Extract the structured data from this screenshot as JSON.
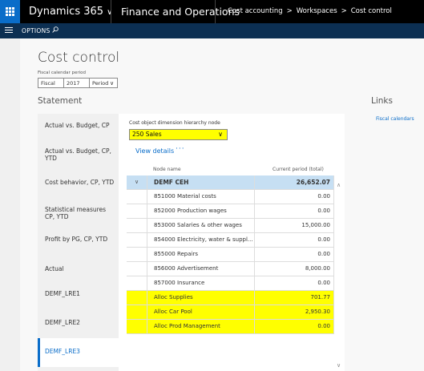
{
  "topbar": {
    "app_name": "Dynamics 365",
    "app_chevron": "∨",
    "module": "Finance and Operations",
    "breadcrumb": [
      "Cost accounting",
      "Workspaces",
      "Cost control"
    ],
    "breadcrumb_separator": ">"
  },
  "actionbar": {
    "options_label": "OPTIONS"
  },
  "page": {
    "title": "Cost control",
    "fiscal_calendar_period_label": "Fiscal calendar period",
    "fiscal": "Fiscal",
    "year": "2017",
    "period": "Period",
    "period_chevron": "∨",
    "statement_heading": "Statement",
    "links_heading": "Links"
  },
  "links": [
    {
      "label": "Fiscal calendars"
    }
  ],
  "statements": [
    {
      "label": "Actual vs. Budget, CP"
    },
    {
      "label": "Actual vs. Budget, CP, YTD"
    },
    {
      "label": "Cost behavior, CP, YTD"
    },
    {
      "label": "Statistical measures CP, YTD"
    },
    {
      "label": "Profit by PG, CP, YTD"
    },
    {
      "label": "Actual"
    },
    {
      "label": "DEMF_LRE1"
    },
    {
      "label": "DEMF_LRE2"
    },
    {
      "label": "DEMF_LRE3"
    }
  ],
  "active_statement": "DEMF_LRE3",
  "main": {
    "hierarchy_label": "Cost object dimension hierarchy node",
    "hierarchy_value": "250 Sales",
    "hierarchy_chevron": "∨",
    "view_details": "View details",
    "more": "···",
    "col_node": "Node name",
    "col_period": "Current period (total)"
  },
  "grid": {
    "header": {
      "expander": "∨",
      "name": "DEMF CEH",
      "value": "26,652.07"
    },
    "rows": [
      {
        "name": "851000 Material costs",
        "value": "0.00"
      },
      {
        "name": "852000 Production wages",
        "value": "0.00"
      },
      {
        "name": "853000 Salaries & other wages",
        "value": "15,000.00"
      },
      {
        "name": "854000 Electricity, water & suppl...",
        "value": "0.00"
      },
      {
        "name": "855000 Repairs",
        "value": "0.00"
      },
      {
        "name": "856000 Advertisement",
        "value": "8,000.00"
      },
      {
        "name": "857000 Insurance",
        "value": "0.00"
      },
      {
        "name": "Alloc Supplies",
        "value": "701.77"
      },
      {
        "name": "Alloc Car Pool",
        "value": "2,950.30"
      },
      {
        "name": "Alloc Prod Management",
        "value": "0.00"
      }
    ]
  },
  "scrollbar": {
    "up": "∧",
    "down": "∨"
  },
  "colors": {
    "brand_blue": "#0a6dc9",
    "header_bar": "#000000",
    "action_bar": "#0c2f52",
    "highlight_yellow": "#ffff00",
    "grid_header": "#c6dff3"
  },
  "icons": {
    "waffle": "app-launcher-icon",
    "hamburger": "menu-icon",
    "search": "search-icon"
  }
}
